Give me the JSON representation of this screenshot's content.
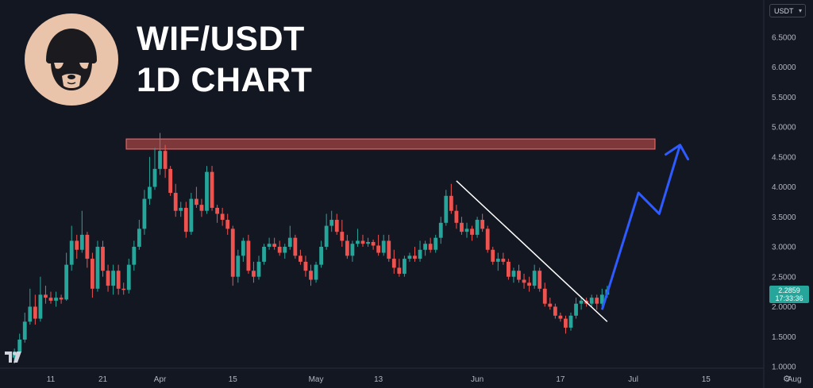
{
  "title_line1": "WIF/USDT",
  "title_line2": "1D CHART",
  "quote_currency": "USDT",
  "current_price": "2.2859",
  "countdown": "17:33:36",
  "colors": {
    "background": "#131722",
    "up": "#26a69a",
    "down": "#ef5350",
    "resistance_zone": "#d9534f",
    "trendline": "#ffffff",
    "projection": "#2e5bff",
    "avatar_bg": "#eac3ab"
  },
  "icons": [
    "dog-avatar-logo",
    "tradingview-logo-icon",
    "settings-gear-icon",
    "chevron-down-icon"
  ],
  "chart_data": {
    "type": "candlestick",
    "title": "",
    "x_ticks": [
      "11",
      "21",
      "Apr",
      "15",
      "May",
      "13",
      "Jun",
      "17",
      "Jul",
      "15",
      "Aug"
    ],
    "y_ticks": [
      "6.5000",
      "6.0000",
      "5.5000",
      "5.0000",
      "4.5000",
      "4.0000",
      "3.5000",
      "3.0000",
      "2.5000",
      "2.0000",
      "1.5000",
      "1.0000"
    ],
    "ylim": [
      1.0,
      7.0
    ],
    "y_axis_side": "right",
    "grid": false,
    "resistance_zone": [
      4.63,
      4.8
    ],
    "trendline": {
      "from": [
        "May 28",
        4.1
      ],
      "to": [
        "Jun 26",
        1.75
      ]
    },
    "projection_path": [
      [
        "Jun 25",
        1.95
      ],
      [
        "Jul 2",
        3.9
      ],
      [
        "Jul 6",
        3.55
      ],
      [
        "Jul 10",
        4.7
      ]
    ],
    "candles": [
      {
        "d": "Mar 4",
        "o": 1.15,
        "h": 1.3,
        "l": 1.05,
        "c": 1.25
      },
      {
        "d": "Mar 5",
        "o": 1.25,
        "h": 1.55,
        "l": 1.2,
        "c": 1.45
      },
      {
        "d": "Mar 6",
        "o": 1.45,
        "h": 1.9,
        "l": 1.4,
        "c": 1.75
      },
      {
        "d": "Mar 7",
        "o": 1.75,
        "h": 2.3,
        "l": 1.7,
        "c": 2.0
      },
      {
        "d": "Mar 8",
        "o": 2.0,
        "h": 2.2,
        "l": 1.7,
        "c": 1.8
      },
      {
        "d": "Mar 9",
        "o": 1.8,
        "h": 2.5,
        "l": 1.75,
        "c": 2.2
      },
      {
        "d": "Mar 10",
        "o": 2.2,
        "h": 2.35,
        "l": 2.05,
        "c": 2.15
      },
      {
        "d": "Mar 11",
        "o": 2.15,
        "h": 2.25,
        "l": 2.05,
        "c": 2.1
      },
      {
        "d": "Mar 12",
        "o": 2.1,
        "h": 2.25,
        "l": 2.0,
        "c": 2.15
      },
      {
        "d": "Mar 13",
        "o": 2.15,
        "h": 2.2,
        "l": 2.05,
        "c": 2.12
      },
      {
        "d": "Mar 14",
        "o": 2.12,
        "h": 2.9,
        "l": 2.1,
        "c": 2.7
      },
      {
        "d": "Mar 15",
        "o": 2.7,
        "h": 3.35,
        "l": 2.6,
        "c": 3.1
      },
      {
        "d": "Mar 16",
        "o": 3.1,
        "h": 3.2,
        "l": 2.8,
        "c": 2.95
      },
      {
        "d": "Mar 17",
        "o": 2.95,
        "h": 3.6,
        "l": 2.9,
        "c": 3.2
      },
      {
        "d": "Mar 18",
        "o": 3.2,
        "h": 3.25,
        "l": 2.65,
        "c": 2.8
      },
      {
        "d": "Mar 19",
        "o": 2.8,
        "h": 2.9,
        "l": 2.15,
        "c": 2.3
      },
      {
        "d": "Mar 20",
        "o": 2.3,
        "h": 3.1,
        "l": 2.25,
        "c": 3.0
      },
      {
        "d": "Mar 21",
        "o": 3.0,
        "h": 3.1,
        "l": 2.5,
        "c": 2.6
      },
      {
        "d": "Mar 22",
        "o": 2.6,
        "h": 2.7,
        "l": 2.25,
        "c": 2.35
      },
      {
        "d": "Mar 23",
        "o": 2.35,
        "h": 2.7,
        "l": 2.2,
        "c": 2.6
      },
      {
        "d": "Mar 24",
        "o": 2.6,
        "h": 2.7,
        "l": 2.2,
        "c": 2.3
      },
      {
        "d": "Mar 25",
        "o": 2.3,
        "h": 2.4,
        "l": 2.2,
        "c": 2.28
      },
      {
        "d": "Mar 26",
        "o": 2.28,
        "h": 2.8,
        "l": 2.22,
        "c": 2.7
      },
      {
        "d": "Mar 27",
        "o": 2.7,
        "h": 3.1,
        "l": 2.6,
        "c": 3.0
      },
      {
        "d": "Mar 28",
        "o": 3.0,
        "h": 3.45,
        "l": 2.95,
        "c": 3.3
      },
      {
        "d": "Mar 29",
        "o": 3.3,
        "h": 3.95,
        "l": 3.2,
        "c": 3.8
      },
      {
        "d": "Mar 30",
        "o": 3.8,
        "h": 4.5,
        "l": 3.7,
        "c": 4.0
      },
      {
        "d": "Mar 31",
        "o": 4.0,
        "h": 4.65,
        "l": 3.95,
        "c": 4.3
      },
      {
        "d": "Apr 1",
        "o": 4.3,
        "h": 4.9,
        "l": 4.2,
        "c": 4.6
      },
      {
        "d": "Apr 2",
        "o": 4.6,
        "h": 4.7,
        "l": 4.15,
        "c": 4.3
      },
      {
        "d": "Apr 3",
        "o": 4.3,
        "h": 4.35,
        "l": 3.85,
        "c": 3.9
      },
      {
        "d": "Apr 4",
        "o": 3.9,
        "h": 4.05,
        "l": 3.5,
        "c": 3.6
      },
      {
        "d": "Apr 5",
        "o": 3.6,
        "h": 3.75,
        "l": 3.5,
        "c": 3.65
      },
      {
        "d": "Apr 6",
        "o": 3.65,
        "h": 3.75,
        "l": 3.15,
        "c": 3.25
      },
      {
        "d": "Apr 7",
        "o": 3.25,
        "h": 3.9,
        "l": 3.2,
        "c": 3.8
      },
      {
        "d": "Apr 8",
        "o": 3.8,
        "h": 4.0,
        "l": 3.65,
        "c": 3.7
      },
      {
        "d": "Apr 9",
        "o": 3.7,
        "h": 3.8,
        "l": 3.5,
        "c": 3.6
      },
      {
        "d": "Apr 10",
        "o": 3.6,
        "h": 4.35,
        "l": 3.55,
        "c": 4.25
      },
      {
        "d": "Apr 11",
        "o": 4.25,
        "h": 4.35,
        "l": 3.6,
        "c": 3.65
      },
      {
        "d": "Apr 12",
        "o": 3.65,
        "h": 3.7,
        "l": 3.4,
        "c": 3.55
      },
      {
        "d": "Apr 13",
        "o": 3.55,
        "h": 3.65,
        "l": 3.35,
        "c": 3.45
      },
      {
        "d": "Apr 14",
        "o": 3.45,
        "h": 3.55,
        "l": 3.2,
        "c": 3.3
      },
      {
        "d": "Apr 15",
        "o": 3.3,
        "h": 3.35,
        "l": 2.35,
        "c": 2.5
      },
      {
        "d": "Apr 16",
        "o": 2.5,
        "h": 2.95,
        "l": 2.4,
        "c": 2.85
      },
      {
        "d": "Apr 17",
        "o": 2.85,
        "h": 3.15,
        "l": 2.75,
        "c": 3.1
      },
      {
        "d": "Apr 18",
        "o": 3.1,
        "h": 3.2,
        "l": 2.55,
        "c": 2.6
      },
      {
        "d": "Apr 19",
        "o": 2.6,
        "h": 2.75,
        "l": 2.4,
        "c": 2.5
      },
      {
        "d": "Apr 20",
        "o": 2.5,
        "h": 2.85,
        "l": 2.45,
        "c": 2.75
      },
      {
        "d": "Apr 21",
        "o": 2.75,
        "h": 3.05,
        "l": 2.7,
        "c": 3.0
      },
      {
        "d": "Apr 22",
        "o": 3.0,
        "h": 3.15,
        "l": 2.95,
        "c": 3.05
      },
      {
        "d": "Apr 23",
        "o": 3.05,
        "h": 3.15,
        "l": 2.95,
        "c": 3.0
      },
      {
        "d": "Apr 24",
        "o": 3.0,
        "h": 3.1,
        "l": 2.85,
        "c": 2.9
      },
      {
        "d": "Apr 25",
        "o": 2.9,
        "h": 3.05,
        "l": 2.8,
        "c": 3.0
      },
      {
        "d": "Apr 26",
        "o": 3.0,
        "h": 3.35,
        "l": 2.95,
        "c": 3.15
      },
      {
        "d": "Apr 27",
        "o": 3.15,
        "h": 3.2,
        "l": 2.8,
        "c": 2.85
      },
      {
        "d": "Apr 28",
        "o": 2.85,
        "h": 2.95,
        "l": 2.7,
        "c": 2.75
      },
      {
        "d": "Apr 29",
        "o": 2.75,
        "h": 2.85,
        "l": 2.5,
        "c": 2.6
      },
      {
        "d": "Apr 30",
        "o": 2.6,
        "h": 2.7,
        "l": 2.35,
        "c": 2.45
      },
      {
        "d": "May 1",
        "o": 2.45,
        "h": 2.75,
        "l": 2.4,
        "c": 2.7
      },
      {
        "d": "May 2",
        "o": 2.7,
        "h": 3.1,
        "l": 2.65,
        "c": 3.0
      },
      {
        "d": "May 3",
        "o": 3.0,
        "h": 3.55,
        "l": 2.95,
        "c": 3.35
      },
      {
        "d": "May 4",
        "o": 3.35,
        "h": 3.6,
        "l": 3.25,
        "c": 3.45
      },
      {
        "d": "May 5",
        "o": 3.45,
        "h": 3.55,
        "l": 3.2,
        "c": 3.25
      },
      {
        "d": "May 6",
        "o": 3.25,
        "h": 3.45,
        "l": 3.0,
        "c": 3.1
      },
      {
        "d": "May 7",
        "o": 3.1,
        "h": 3.2,
        "l": 2.8,
        "c": 2.85
      },
      {
        "d": "May 8",
        "o": 2.85,
        "h": 3.1,
        "l": 2.75,
        "c": 3.05
      },
      {
        "d": "May 9",
        "o": 3.05,
        "h": 3.3,
        "l": 3.0,
        "c": 3.1
      },
      {
        "d": "May 10",
        "o": 3.1,
        "h": 3.2,
        "l": 3.0,
        "c": 3.05
      },
      {
        "d": "May 11",
        "o": 3.05,
        "h": 3.15,
        "l": 3.0,
        "c": 3.08
      },
      {
        "d": "May 12",
        "o": 3.08,
        "h": 3.12,
        "l": 2.95,
        "c": 3.02
      },
      {
        "d": "May 13",
        "o": 3.02,
        "h": 3.2,
        "l": 2.85,
        "c": 2.9
      },
      {
        "d": "May 14",
        "o": 2.9,
        "h": 3.2,
        "l": 2.85,
        "c": 3.1
      },
      {
        "d": "May 15",
        "o": 3.1,
        "h": 3.2,
        "l": 2.75,
        "c": 2.8
      },
      {
        "d": "May 16",
        "o": 2.8,
        "h": 2.95,
        "l": 2.55,
        "c": 2.65
      },
      {
        "d": "May 17",
        "o": 2.65,
        "h": 2.8,
        "l": 2.5,
        "c": 2.55
      },
      {
        "d": "May 18",
        "o": 2.55,
        "h": 2.85,
        "l": 2.5,
        "c": 2.8
      },
      {
        "d": "May 19",
        "o": 2.8,
        "h": 2.9,
        "l": 2.75,
        "c": 2.85
      },
      {
        "d": "May 20",
        "o": 2.85,
        "h": 3.0,
        "l": 2.75,
        "c": 2.8
      },
      {
        "d": "May 21",
        "o": 2.8,
        "h": 3.1,
        "l": 2.75,
        "c": 2.95
      },
      {
        "d": "May 22",
        "o": 2.95,
        "h": 3.1,
        "l": 2.85,
        "c": 3.05
      },
      {
        "d": "May 23",
        "o": 3.05,
        "h": 3.15,
        "l": 2.9,
        "c": 2.95
      },
      {
        "d": "May 24",
        "o": 2.95,
        "h": 3.2,
        "l": 2.9,
        "c": 3.15
      },
      {
        "d": "May 25",
        "o": 3.15,
        "h": 3.5,
        "l": 3.05,
        "c": 3.4
      },
      {
        "d": "May 26",
        "o": 3.4,
        "h": 3.95,
        "l": 3.35,
        "c": 3.85
      },
      {
        "d": "May 27",
        "o": 3.85,
        "h": 4.05,
        "l": 3.55,
        "c": 3.6
      },
      {
        "d": "May 28",
        "o": 3.6,
        "h": 3.7,
        "l": 3.3,
        "c": 3.4
      },
      {
        "d": "May 29",
        "o": 3.4,
        "h": 3.5,
        "l": 3.2,
        "c": 3.25
      },
      {
        "d": "May 30",
        "o": 3.25,
        "h": 3.4,
        "l": 3.15,
        "c": 3.3
      },
      {
        "d": "May 31",
        "o": 3.3,
        "h": 3.35,
        "l": 3.1,
        "c": 3.2
      },
      {
        "d": "Jun 1",
        "o": 3.2,
        "h": 3.5,
        "l": 3.15,
        "c": 3.45
      },
      {
        "d": "Jun 2",
        "o": 3.45,
        "h": 3.55,
        "l": 3.25,
        "c": 3.3
      },
      {
        "d": "Jun 3",
        "o": 3.3,
        "h": 3.35,
        "l": 2.9,
        "c": 2.95
      },
      {
        "d": "Jun 4",
        "o": 2.95,
        "h": 3.0,
        "l": 2.7,
        "c": 2.75
      },
      {
        "d": "Jun 5",
        "o": 2.75,
        "h": 2.9,
        "l": 2.6,
        "c": 2.8
      },
      {
        "d": "Jun 6",
        "o": 2.8,
        "h": 2.9,
        "l": 2.7,
        "c": 2.75
      },
      {
        "d": "Jun 7",
        "o": 2.75,
        "h": 2.8,
        "l": 2.45,
        "c": 2.5
      },
      {
        "d": "Jun 8",
        "o": 2.5,
        "h": 2.65,
        "l": 2.4,
        "c": 2.6
      },
      {
        "d": "Jun 9",
        "o": 2.6,
        "h": 2.7,
        "l": 2.4,
        "c": 2.45
      },
      {
        "d": "Jun 10",
        "o": 2.45,
        "h": 2.55,
        "l": 2.3,
        "c": 2.4
      },
      {
        "d": "Jun 11",
        "o": 2.4,
        "h": 2.5,
        "l": 2.25,
        "c": 2.35
      },
      {
        "d": "Jun 12",
        "o": 2.35,
        "h": 2.7,
        "l": 2.3,
        "c": 2.6
      },
      {
        "d": "Jun 13",
        "o": 2.6,
        "h": 2.65,
        "l": 2.25,
        "c": 2.3
      },
      {
        "d": "Jun 14",
        "o": 2.3,
        "h": 2.4,
        "l": 2.0,
        "c": 2.05
      },
      {
        "d": "Jun 15",
        "o": 2.05,
        "h": 2.15,
        "l": 1.95,
        "c": 2.0
      },
      {
        "d": "Jun 16",
        "o": 2.0,
        "h": 2.05,
        "l": 1.8,
        "c": 1.85
      },
      {
        "d": "Jun 17",
        "o": 1.85,
        "h": 1.9,
        "l": 1.75,
        "c": 1.8
      },
      {
        "d": "Jun 18",
        "o": 1.8,
        "h": 1.85,
        "l": 1.55,
        "c": 1.65
      },
      {
        "d": "Jun 19",
        "o": 1.65,
        "h": 1.9,
        "l": 1.6,
        "c": 1.85
      },
      {
        "d": "Jun 20",
        "o": 1.85,
        "h": 2.15,
        "l": 1.8,
        "c": 2.05
      },
      {
        "d": "Jun 21",
        "o": 2.05,
        "h": 2.15,
        "l": 1.95,
        "c": 2.1
      },
      {
        "d": "Jun 22",
        "o": 2.1,
        "h": 2.15,
        "l": 2.0,
        "c": 2.05
      },
      {
        "d": "Jun 23",
        "o": 2.05,
        "h": 2.2,
        "l": 2.0,
        "c": 2.15
      },
      {
        "d": "Jun 24",
        "o": 2.15,
        "h": 2.2,
        "l": 1.95,
        "c": 2.05
      },
      {
        "d": "Jun 25",
        "o": 2.05,
        "h": 2.3,
        "l": 2.0,
        "c": 2.2
      },
      {
        "d": "Jun 26",
        "o": 2.2,
        "h": 2.35,
        "l": 2.15,
        "c": 2.29
      }
    ]
  }
}
